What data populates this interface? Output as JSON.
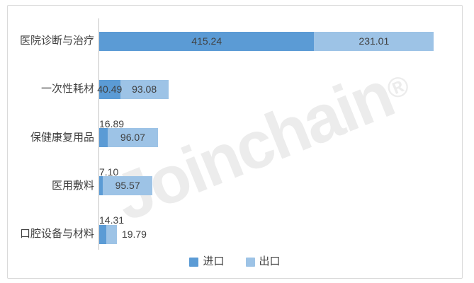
{
  "watermark": {
    "text": "Joinchain",
    "reg_mark": "®"
  },
  "colors": {
    "import": "#5B9BD5",
    "export": "#9DC3E6",
    "axis_line": "#C3C3C3",
    "card_border": "#D9D9D9",
    "label_text": "#404040",
    "watermark": "#ECECEC"
  },
  "chart_data": {
    "type": "bar",
    "orientation": "horizontal",
    "stacked": true,
    "grid": false,
    "title": "",
    "xlabel": "",
    "ylabel": "",
    "categories": [
      "医院诊断与治疗",
      "一次性耗材",
      "保健康复用品",
      "医用敷料",
      "口腔设备与材料"
    ],
    "series": [
      {
        "name": "进口",
        "color_key": "import",
        "values": [
          415.24,
          40.49,
          16.89,
          7.1,
          14.31
        ]
      },
      {
        "name": "出口",
        "color_key": "export",
        "values": [
          231.01,
          93.08,
          96.07,
          95.57,
          19.79
        ]
      }
    ],
    "value_label_decimals": 2,
    "xlim": [
      0,
      702
    ],
    "legend_position": "bottom"
  }
}
